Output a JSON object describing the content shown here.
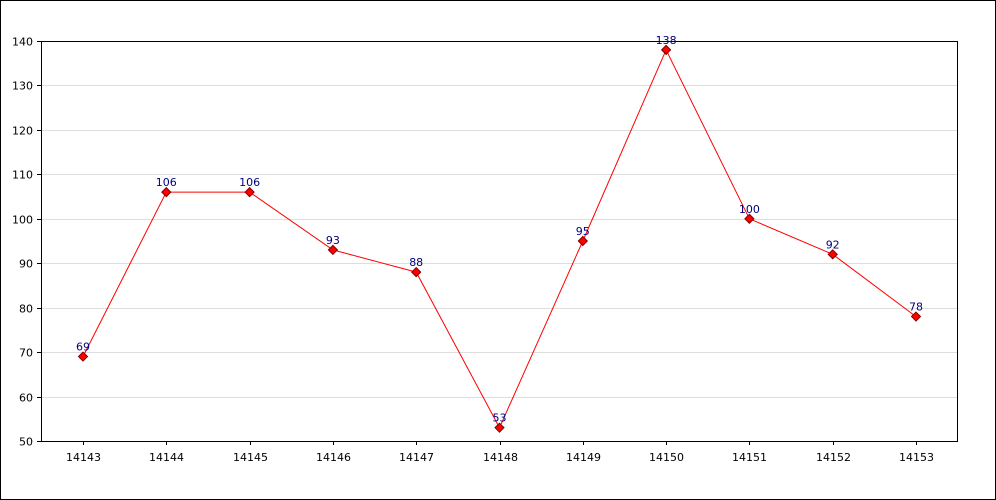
{
  "chart_data": {
    "type": "line",
    "title": "",
    "xlabel": "",
    "ylabel": "",
    "categories": [
      "14143",
      "14144",
      "14145",
      "14146",
      "14147",
      "14148",
      "14149",
      "14150",
      "14151",
      "14152",
      "14153"
    ],
    "series": [
      {
        "values": [
          69,
          106,
          106,
          93,
          88,
          53,
          95,
          138,
          100,
          92,
          78
        ],
        "color": "#ff0000",
        "marker": "diamond",
        "marker_fill": "#ff0000",
        "marker_stroke": "#800000"
      }
    ],
    "ylim": [
      50,
      140
    ],
    "yticks": [
      50,
      60,
      70,
      80,
      90,
      100,
      110,
      120,
      130,
      140
    ],
    "grid": "horizontal",
    "data_labels": true,
    "legend": "none",
    "colors": {
      "line": "#ff0000",
      "grid": "#dddddd",
      "data_label": "#000080",
      "axis": "#000000"
    }
  }
}
